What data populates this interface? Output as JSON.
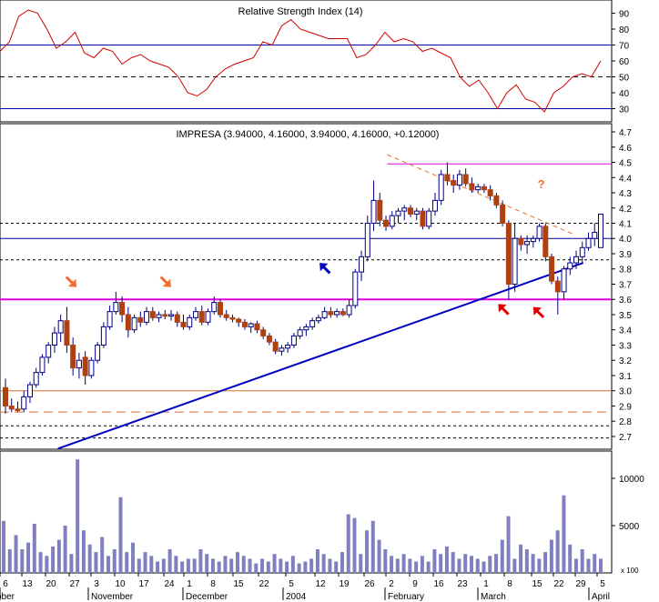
{
  "chart_data": [
    {
      "type": "line",
      "panel": "indicator",
      "title": "Relative Strength Index (14)",
      "yticks": [
        30,
        40,
        50,
        60,
        70,
        80,
        90
      ],
      "ylim": [
        24,
        96
      ],
      "hlines": [
        {
          "value": 70,
          "style": "solid",
          "color": "#0000a0"
        },
        {
          "value": 50,
          "style": "dashed",
          "color": "#000000"
        },
        {
          "value": 30,
          "style": "solid",
          "color": "#0000a0"
        }
      ],
      "series": [
        {
          "color": "#d00000",
          "x": [
            0,
            2,
            4,
            6,
            8,
            10,
            12,
            14,
            16,
            18,
            20,
            22,
            24,
            26,
            28,
            30,
            32,
            34,
            36,
            38,
            40,
            42,
            44,
            46,
            48,
            50,
            52,
            54,
            56,
            58,
            60,
            62,
            64,
            66,
            68,
            70,
            72,
            74,
            76,
            78,
            80,
            82,
            84,
            86,
            88,
            90,
            92,
            94,
            96,
            98,
            100,
            102,
            104,
            106,
            108,
            110,
            112,
            114,
            116,
            118,
            120,
            122,
            124,
            126,
            128
          ],
          "values": [
            66,
            72,
            88,
            92,
            90,
            80,
            68,
            72,
            78,
            65,
            62,
            68,
            66,
            58,
            62,
            64,
            60,
            58,
            56,
            50,
            40,
            38,
            42,
            50,
            55,
            58,
            60,
            62,
            72,
            70,
            82,
            86,
            80,
            78,
            76,
            74,
            74,
            74,
            62,
            64,
            70,
            78,
            72,
            74,
            72,
            66,
            68,
            65,
            62,
            50,
            44,
            48,
            40,
            30,
            40,
            45,
            36,
            34,
            28,
            40,
            44,
            50,
            52,
            50,
            60
          ]
        }
      ]
    },
    {
      "type": "candlestick",
      "panel": "price",
      "title": "IMPRESA (3.94000, 4.16000, 3.94000, 4.16000, +0.12000)",
      "yticks": [
        2.7,
        2.8,
        2.9,
        3.0,
        3.1,
        3.2,
        3.3,
        3.4,
        3.5,
        3.6,
        3.7,
        3.8,
        3.9,
        4.0,
        4.1,
        4.2,
        4.3,
        4.4,
        4.5,
        4.6,
        4.7
      ],
      "ylim": [
        2.64,
        4.73
      ],
      "hlines": [
        {
          "value": 4.49,
          "color": "#e000e0",
          "style": "solid"
        },
        {
          "value": 4.1,
          "color": "#000000",
          "style": "dashed"
        },
        {
          "value": 4.0,
          "color": "#0000a0",
          "style": "solid"
        },
        {
          "value": 3.86,
          "color": "#000000",
          "style": "dashed"
        },
        {
          "value": 3.6,
          "color": "#e000e0",
          "style": "solid"
        },
        {
          "value": 3.0,
          "color": "#d07030",
          "style": "solid"
        },
        {
          "value": 2.86,
          "color": "#d07030",
          "style": "dashed"
        },
        {
          "value": 2.77,
          "color": "#000000",
          "style": "dashed"
        },
        {
          "value": 2.69,
          "color": "#000000",
          "style": "dashed"
        }
      ],
      "trendlines": [
        {
          "from": [
            15,
            2.62
          ],
          "to": [
            165,
            3.84
          ],
          "color": "#0000c0"
        },
        {
          "from": [
            109,
            4.55
          ],
          "to": [
            162,
            4.03
          ],
          "color": "#e07030",
          "style": "dashed"
        }
      ],
      "annotations": [
        {
          "type": "arrow",
          "at": [
            19,
            3.71
          ],
          "color": "#f07030"
        },
        {
          "type": "arrow",
          "at": [
            46,
            3.71
          ],
          "color": "#f07030"
        },
        {
          "type": "arrow",
          "at": [
            91,
            3.81
          ],
          "color": "#0000c0"
        },
        {
          "type": "arrow",
          "at": [
            142,
            3.54
          ],
          "color": "#e00000"
        },
        {
          "type": "arrow",
          "at": [
            152,
            3.52
          ],
          "color": "#e00000"
        },
        {
          "type": "text",
          "text": "?",
          "at": [
            153,
            4.33
          ],
          "color": "#f07030"
        }
      ],
      "candles": [
        {
          "x": 0,
          "o": 3.02,
          "h": 3.08,
          "l": 2.85,
          "c": 2.9
        },
        {
          "x": 1,
          "o": 2.9,
          "h": 2.95,
          "l": 2.86,
          "c": 2.88
        },
        {
          "x": 2,
          "o": 2.88,
          "h": 2.93,
          "l": 2.86,
          "c": 2.87
        },
        {
          "x": 3,
          "o": 2.88,
          "h": 3.0,
          "l": 2.86,
          "c": 2.96
        },
        {
          "x": 4,
          "o": 2.96,
          "h": 3.06,
          "l": 2.92,
          "c": 3.04
        },
        {
          "x": 5,
          "o": 3.04,
          "h": 3.15,
          "l": 3.02,
          "c": 3.12
        },
        {
          "x": 6,
          "o": 3.12,
          "h": 3.24,
          "l": 3.1,
          "c": 3.22
        },
        {
          "x": 7,
          "o": 3.22,
          "h": 3.32,
          "l": 3.18,
          "c": 3.3
        },
        {
          "x": 8,
          "o": 3.3,
          "h": 3.42,
          "l": 3.25,
          "c": 3.38
        },
        {
          "x": 9,
          "o": 3.38,
          "h": 3.5,
          "l": 3.32,
          "c": 3.46
        },
        {
          "x": 10,
          "o": 3.46,
          "h": 3.55,
          "l": 3.25,
          "c": 3.3
        },
        {
          "x": 11,
          "o": 3.3,
          "h": 3.35,
          "l": 3.1,
          "c": 3.15
        },
        {
          "x": 12,
          "o": 3.15,
          "h": 3.25,
          "l": 3.08,
          "c": 3.2
        },
        {
          "x": 13,
          "o": 3.22,
          "h": 3.26,
          "l": 3.04,
          "c": 3.1
        },
        {
          "x": 14,
          "o": 3.1,
          "h": 3.22,
          "l": 3.08,
          "c": 3.2
        },
        {
          "x": 15,
          "o": 3.2,
          "h": 3.32,
          "l": 3.18,
          "c": 3.3
        },
        {
          "x": 16,
          "o": 3.3,
          "h": 3.45,
          "l": 3.28,
          "c": 3.42
        },
        {
          "x": 17,
          "o": 3.42,
          "h": 3.56,
          "l": 3.4,
          "c": 3.52
        },
        {
          "x": 18,
          "o": 3.52,
          "h": 3.65,
          "l": 3.5,
          "c": 3.58
        },
        {
          "x": 19,
          "o": 3.58,
          "h": 3.62,
          "l": 3.45,
          "c": 3.5
        },
        {
          "x": 20,
          "o": 3.5,
          "h": 3.55,
          "l": 3.35,
          "c": 3.4
        },
        {
          "x": 21,
          "o": 3.4,
          "h": 3.5,
          "l": 3.38,
          "c": 3.48
        },
        {
          "x": 22,
          "o": 3.48,
          "h": 3.52,
          "l": 3.42,
          "c": 3.45
        },
        {
          "x": 23,
          "o": 3.45,
          "h": 3.55,
          "l": 3.43,
          "c": 3.52
        },
        {
          "x": 24,
          "o": 3.52,
          "h": 3.55,
          "l": 3.46,
          "c": 3.48
        },
        {
          "x": 25,
          "o": 3.48,
          "h": 3.52,
          "l": 3.45,
          "c": 3.5
        },
        {
          "x": 26,
          "o": 3.5,
          "h": 3.53,
          "l": 3.47,
          "c": 3.49
        },
        {
          "x": 27,
          "o": 3.49,
          "h": 3.53,
          "l": 3.46,
          "c": 3.5
        },
        {
          "x": 28,
          "o": 3.5,
          "h": 3.52,
          "l": 3.42,
          "c": 3.45
        },
        {
          "x": 29,
          "o": 3.45,
          "h": 3.5,
          "l": 3.4,
          "c": 3.42
        },
        {
          "x": 30,
          "o": 3.42,
          "h": 3.5,
          "l": 3.4,
          "c": 3.48
        },
        {
          "x": 31,
          "o": 3.48,
          "h": 3.55,
          "l": 3.46,
          "c": 3.52
        },
        {
          "x": 32,
          "o": 3.52,
          "h": 3.56,
          "l": 3.43,
          "c": 3.45
        },
        {
          "x": 33,
          "o": 3.45,
          "h": 3.54,
          "l": 3.43,
          "c": 3.52
        },
        {
          "x": 34,
          "o": 3.52,
          "h": 3.62,
          "l": 3.5,
          "c": 3.58
        },
        {
          "x": 35,
          "o": 3.58,
          "h": 3.6,
          "l": 3.48,
          "c": 3.5
        },
        {
          "x": 36,
          "o": 3.5,
          "h": 3.53,
          "l": 3.46,
          "c": 3.48
        },
        {
          "x": 37,
          "o": 3.48,
          "h": 3.5,
          "l": 3.45,
          "c": 3.47
        },
        {
          "x": 38,
          "o": 3.47,
          "h": 3.48,
          "l": 3.42,
          "c": 3.45
        },
        {
          "x": 39,
          "o": 3.45,
          "h": 3.47,
          "l": 3.4,
          "c": 3.42
        },
        {
          "x": 40,
          "o": 3.42,
          "h": 3.45,
          "l": 3.38,
          "c": 3.44
        },
        {
          "x": 41,
          "o": 3.44,
          "h": 3.46,
          "l": 3.38,
          "c": 3.4
        },
        {
          "x": 42,
          "o": 3.4,
          "h": 3.42,
          "l": 3.34,
          "c": 3.36
        },
        {
          "x": 43,
          "o": 3.36,
          "h": 3.38,
          "l": 3.3,
          "c": 3.32
        },
        {
          "x": 44,
          "o": 3.32,
          "h": 3.34,
          "l": 3.24,
          "c": 3.26
        },
        {
          "x": 45,
          "o": 3.26,
          "h": 3.3,
          "l": 3.23,
          "c": 3.28
        },
        {
          "x": 46,
          "o": 3.28,
          "h": 3.32,
          "l": 3.25,
          "c": 3.3
        },
        {
          "x": 47,
          "o": 3.3,
          "h": 3.38,
          "l": 3.28,
          "c": 3.36
        },
        {
          "x": 48,
          "o": 3.36,
          "h": 3.42,
          "l": 3.34,
          "c": 3.4
        },
        {
          "x": 49,
          "o": 3.4,
          "h": 3.44,
          "l": 3.36,
          "c": 3.42
        },
        {
          "x": 50,
          "o": 3.42,
          "h": 3.48,
          "l": 3.4,
          "c": 3.46
        },
        {
          "x": 51,
          "o": 3.46,
          "h": 3.5,
          "l": 3.44,
          "c": 3.48
        },
        {
          "x": 52,
          "o": 3.48,
          "h": 3.55,
          "l": 3.47,
          "c": 3.52
        },
        {
          "x": 53,
          "o": 3.52,
          "h": 3.55,
          "l": 3.48,
          "c": 3.5
        },
        {
          "x": 54,
          "o": 3.5,
          "h": 3.54,
          "l": 3.48,
          "c": 3.52
        },
        {
          "x": 55,
          "o": 3.52,
          "h": 3.54,
          "l": 3.49,
          "c": 3.5
        },
        {
          "x": 56,
          "o": 3.5,
          "h": 3.6,
          "l": 3.48,
          "c": 3.56
        },
        {
          "x": 57,
          "o": 3.56,
          "h": 3.8,
          "l": 3.54,
          "c": 3.78
        },
        {
          "x": 58,
          "o": 3.78,
          "h": 3.92,
          "l": 3.72,
          "c": 3.88
        },
        {
          "x": 59,
          "o": 3.88,
          "h": 4.15,
          "l": 3.85,
          "c": 4.1
        },
        {
          "x": 60,
          "o": 4.1,
          "h": 4.38,
          "l": 4.05,
          "c": 4.25
        },
        {
          "x": 61,
          "o": 4.25,
          "h": 4.3,
          "l": 4.08,
          "c": 4.12
        },
        {
          "x": 62,
          "o": 4.12,
          "h": 4.15,
          "l": 4.05,
          "c": 4.08
        },
        {
          "x": 63,
          "o": 4.08,
          "h": 4.18,
          "l": 4.06,
          "c": 4.15
        },
        {
          "x": 64,
          "o": 4.15,
          "h": 4.2,
          "l": 4.1,
          "c": 4.18
        },
        {
          "x": 65,
          "o": 4.18,
          "h": 4.22,
          "l": 4.12,
          "c": 4.2
        },
        {
          "x": 66,
          "o": 4.2,
          "h": 4.22,
          "l": 4.14,
          "c": 4.16
        },
        {
          "x": 67,
          "o": 4.16,
          "h": 4.2,
          "l": 4.12,
          "c": 4.18
        },
        {
          "x": 68,
          "o": 4.18,
          "h": 4.2,
          "l": 4.06,
          "c": 4.08
        },
        {
          "x": 69,
          "o": 4.08,
          "h": 4.2,
          "l": 4.06,
          "c": 4.18
        },
        {
          "x": 70,
          "o": 4.18,
          "h": 4.3,
          "l": 4.15,
          "c": 4.25
        },
        {
          "x": 71,
          "o": 4.25,
          "h": 4.45,
          "l": 4.22,
          "c": 4.42
        },
        {
          "x": 72,
          "o": 4.42,
          "h": 4.5,
          "l": 4.35,
          "c": 4.38
        },
        {
          "x": 73,
          "o": 4.38,
          "h": 4.42,
          "l": 4.3,
          "c": 4.35
        },
        {
          "x": 74,
          "o": 4.35,
          "h": 4.45,
          "l": 4.32,
          "c": 4.42
        },
        {
          "x": 75,
          "o": 4.42,
          "h": 4.46,
          "l": 4.34,
          "c": 4.36
        },
        {
          "x": 76,
          "o": 4.36,
          "h": 4.4,
          "l": 4.3,
          "c": 4.32
        },
        {
          "x": 77,
          "o": 4.32,
          "h": 4.36,
          "l": 4.3,
          "c": 4.34
        },
        {
          "x": 78,
          "o": 4.34,
          "h": 4.36,
          "l": 4.3,
          "c": 4.32
        },
        {
          "x": 79,
          "o": 4.32,
          "h": 4.35,
          "l": 4.25,
          "c": 4.28
        },
        {
          "x": 80,
          "o": 4.28,
          "h": 4.3,
          "l": 4.2,
          "c": 4.22
        },
        {
          "x": 81,
          "o": 4.22,
          "h": 4.25,
          "l": 4.08,
          "c": 4.1
        },
        {
          "x": 82,
          "o": 4.1,
          "h": 4.12,
          "l": 3.6,
          "c": 3.7
        },
        {
          "x": 83,
          "o": 3.7,
          "h": 4.1,
          "l": 3.65,
          "c": 4.0
        },
        {
          "x": 84,
          "o": 4.0,
          "h": 4.02,
          "l": 3.92,
          "c": 3.96
        },
        {
          "x": 85,
          "o": 3.96,
          "h": 4.02,
          "l": 3.9,
          "c": 3.98
        },
        {
          "x": 86,
          "o": 3.98,
          "h": 4.02,
          "l": 3.94,
          "c": 4.0
        },
        {
          "x": 87,
          "o": 4.0,
          "h": 4.1,
          "l": 3.98,
          "c": 4.08
        },
        {
          "x": 88,
          "o": 4.08,
          "h": 4.1,
          "l": 3.85,
          "c": 3.88
        },
        {
          "x": 89,
          "o": 3.88,
          "h": 3.9,
          "l": 3.7,
          "c": 3.72
        },
        {
          "x": 90,
          "o": 3.72,
          "h": 3.75,
          "l": 3.5,
          "c": 3.65
        },
        {
          "x": 91,
          "o": 3.65,
          "h": 3.82,
          "l": 3.6,
          "c": 3.8
        },
        {
          "x": 92,
          "o": 3.8,
          "h": 3.88,
          "l": 3.76,
          "c": 3.84
        },
        {
          "x": 93,
          "o": 3.84,
          "h": 3.92,
          "l": 3.8,
          "c": 3.88
        },
        {
          "x": 94,
          "o": 3.88,
          "h": 3.98,
          "l": 3.84,
          "c": 3.94
        },
        {
          "x": 95,
          "o": 3.94,
          "h": 4.04,
          "l": 3.92,
          "c": 4.0
        },
        {
          "x": 96,
          "o": 4.0,
          "h": 4.1,
          "l": 3.95,
          "c": 4.04
        },
        {
          "x": 97,
          "o": 3.94,
          "h": 4.16,
          "l": 3.94,
          "c": 4.16
        }
      ]
    },
    {
      "type": "bar",
      "panel": "volume",
      "yticks": [
        5000,
        10000
      ],
      "ylim": [
        0,
        12500
      ],
      "scale_label": "x 100",
      "values": [
        5500,
        2500,
        4000,
        2500,
        3200,
        5200,
        2200,
        1800,
        2800,
        3500,
        5000,
        2000,
        12000,
        4500,
        3000,
        2200,
        3800,
        1800,
        2500,
        8000,
        2200,
        3200,
        1500,
        2200,
        1800,
        1200,
        1500,
        2500,
        1800,
        1200,
        1500,
        1500,
        2500,
        2000,
        1500,
        1200,
        1800,
        1500,
        2200,
        1800,
        1500,
        1000,
        1500,
        1200,
        2000,
        1500,
        1200,
        1800,
        1000,
        1200,
        1500,
        2500,
        2000,
        1500,
        1200,
        2200,
        6200,
        5800,
        2000,
        4500,
        5500,
        3500,
        2500,
        1800,
        1500,
        2000,
        1500,
        1200,
        1800,
        1200,
        2500,
        2000,
        2800,
        2200,
        1500,
        2000,
        1800,
        1500,
        1200,
        1800,
        2000,
        3500,
        6000,
        1500,
        3000,
        2500,
        2000,
        1500,
        2200,
        3500,
        4500,
        8200,
        3000,
        1500,
        2500,
        1500,
        2000,
        1500
      ]
    }
  ],
  "x_axis": {
    "day_labels": [
      "6",
      "13",
      "20",
      "27",
      "3",
      "10",
      "17",
      "24",
      "1",
      "8",
      "15",
      "22",
      "5",
      "12",
      "19",
      "26",
      "2",
      "9",
      "16",
      "23",
      "1",
      "8",
      "15",
      "22",
      "29",
      "5"
    ],
    "month_labels": [
      "ober",
      "November",
      "December",
      "2004",
      "February",
      "March",
      "April"
    ]
  },
  "colors": {
    "candle_up": "#ffffff",
    "candle_down": "#b04010",
    "candle_outline": "#000080",
    "volume_bar": "#8080c0",
    "grid": "#000000"
  }
}
